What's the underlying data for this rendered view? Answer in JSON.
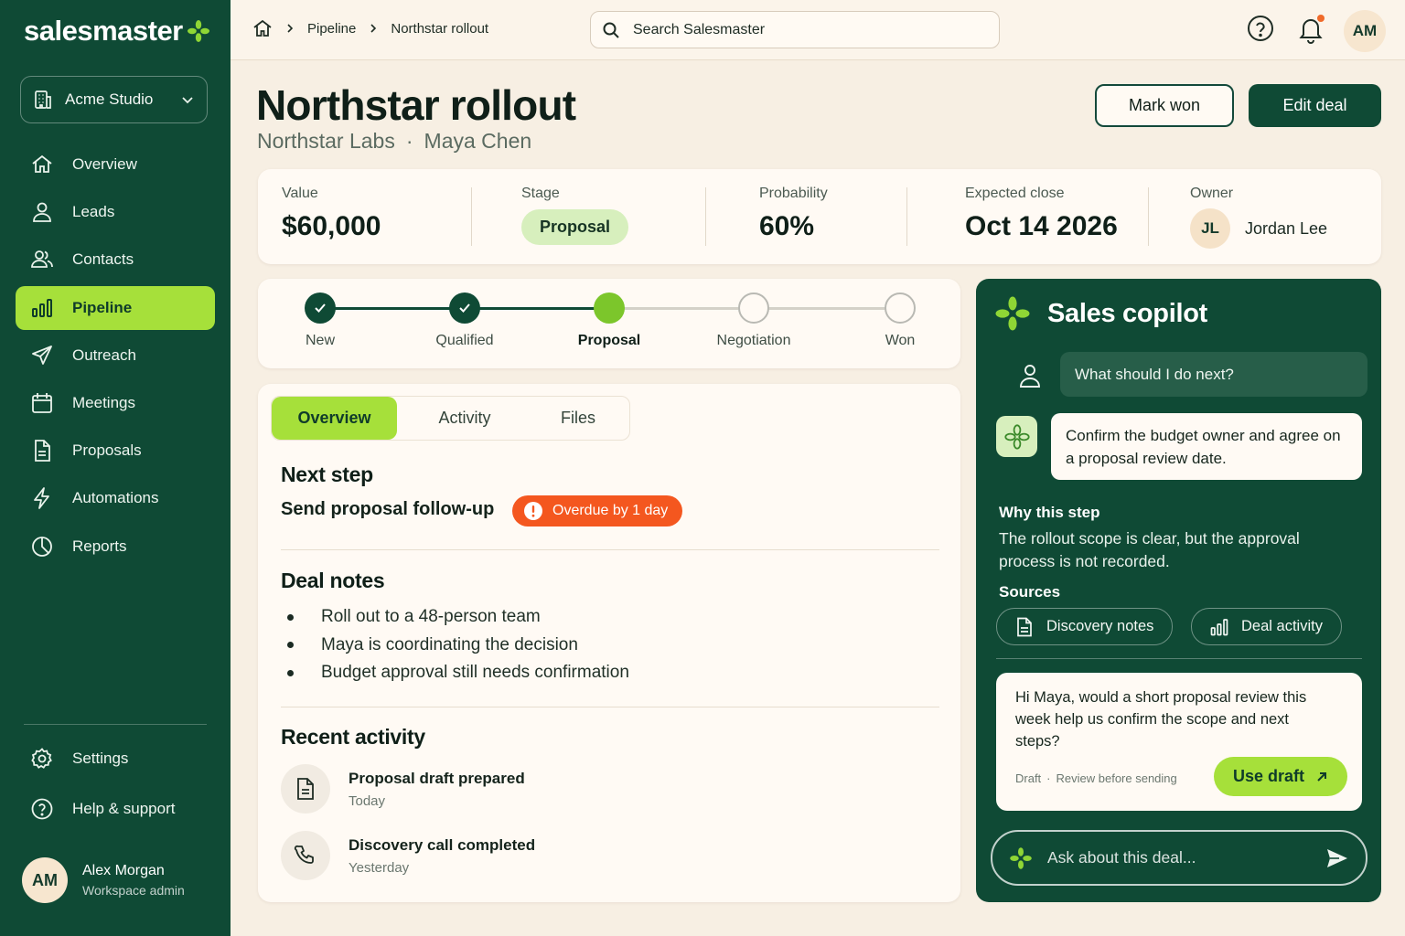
{
  "app": {
    "logo_text": "salesmaster",
    "accent": "#a6e03a",
    "brand": "#0f4a35"
  },
  "sidebar": {
    "workspace": "Acme Studio",
    "items": [
      {
        "label": "Overview",
        "icon": "home-icon"
      },
      {
        "label": "Leads",
        "icon": "user-icon"
      },
      {
        "label": "Contacts",
        "icon": "users-icon"
      },
      {
        "label": "Pipeline",
        "icon": "bar-chart-icon",
        "active": true
      },
      {
        "label": "Outreach",
        "icon": "send-icon"
      },
      {
        "label": "Meetings",
        "icon": "calendar-icon"
      },
      {
        "label": "Proposals",
        "icon": "document-icon"
      },
      {
        "label": "Automations",
        "icon": "bolt-icon"
      },
      {
        "label": "Reports",
        "icon": "pie-chart-icon"
      }
    ],
    "bottom_items": [
      {
        "label": "Settings",
        "icon": "gear-icon"
      },
      {
        "label": "Help & support",
        "icon": "help-icon"
      }
    ],
    "user": {
      "initials": "AM",
      "name": "Alex Morgan",
      "role": "Workspace admin"
    }
  },
  "topbar": {
    "breadcrumbs": [
      "Pipeline",
      "Northstar rollout"
    ],
    "search_placeholder": "Search Salesmaster",
    "user_initials": "AM"
  },
  "header": {
    "title": "Northstar rollout",
    "company": "Northstar Labs",
    "separator": "·",
    "contact": "Maya Chen",
    "mark_won": "Mark won",
    "edit_deal": "Edit deal"
  },
  "summary": {
    "value_label": "Value",
    "value": "$60,000",
    "stage_label": "Stage",
    "stage": "Proposal",
    "probability_label": "Probability",
    "probability": "60%",
    "close_label": "Expected close",
    "close": "Oct 14 2026",
    "owner_label": "Owner",
    "owner_initials": "JL",
    "owner_name": "Jordan Lee"
  },
  "stages": [
    {
      "label": "New",
      "status": "done"
    },
    {
      "label": "Qualified",
      "status": "done"
    },
    {
      "label": "Proposal",
      "status": "current"
    },
    {
      "label": "Negotiation",
      "status": "todo"
    },
    {
      "label": "Won",
      "status": "todo"
    }
  ],
  "deal": {
    "tabs": [
      "Overview",
      "Activity",
      "Files"
    ],
    "next_step_title": "Next step",
    "next_step_task": "Send proposal follow-up",
    "overdue": "Overdue by 1 day",
    "notes_title": "Deal notes",
    "notes": [
      "Roll out to a 48-person team",
      "Maya is coordinating the decision",
      "Budget approval still needs confirmation"
    ],
    "activity_title": "Recent activity",
    "activity": [
      {
        "title": "Proposal draft prepared",
        "time": "Today",
        "icon": "document-icon"
      },
      {
        "title": "Discovery call completed",
        "time": "Yesterday",
        "icon": "phone-icon"
      }
    ]
  },
  "copilot": {
    "title": "Sales copilot",
    "user_message": "What should I do next?",
    "bot_message": "Confirm the budget owner and agree on a proposal review date.",
    "why_title": "Why this step",
    "why_text": "The rollout scope is clear, but the approval process is not recorded.",
    "sources_title": "Sources",
    "sources": [
      "Discovery notes",
      "Deal activity"
    ],
    "draft_text": "Hi Maya, would a short proposal review this week help us confirm the scope and next steps?",
    "draft_meta": [
      "Draft",
      "·",
      "Review before sending"
    ],
    "use_draft": "Use draft",
    "ask_placeholder": "Ask about this deal..."
  }
}
